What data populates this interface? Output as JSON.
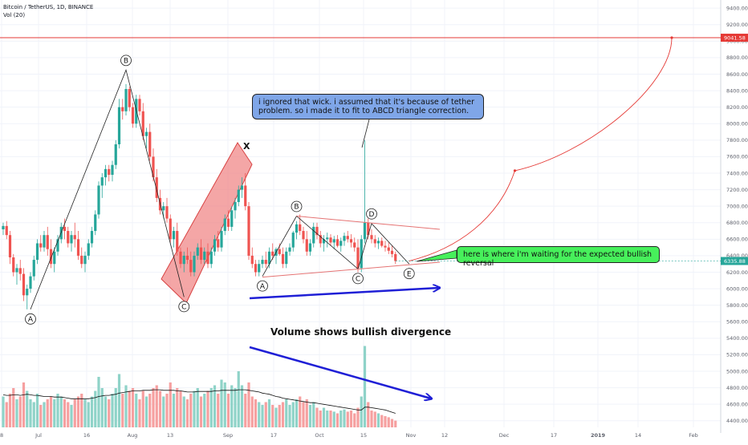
{
  "header": {
    "symbol_line": "Bitcoin / TetherUS, 1D, BINANCE",
    "volume_line": "Vol (20)"
  },
  "annotations": {
    "callout_blue": "i ignored that wick. i assumed that it's because of tether problem. so i made it to fit to ABCD triangle correction.",
    "callout_green": "here is where i'm waiting for the expected bullish reversal",
    "volume_note": "Volume shows bullish divergence",
    "x_mark": "X"
  },
  "colors": {
    "bull": "#26a69a",
    "bear": "#ef5350",
    "bull_volume": "#8fd3c8",
    "bear_volume": "#f6a0a0",
    "target_line": "#e53935",
    "arrow": "#1f1fd6",
    "channel_fill": "#f08080",
    "callout_blue": "#7fa6e8",
    "callout_green": "#47f05b"
  },
  "chart_data": {
    "type": "candlestick",
    "y_axis": {
      "ticks": [
        4400,
        4600,
        4800,
        5000,
        5200,
        5400,
        5600,
        5800,
        6000,
        6200,
        6400,
        6600,
        6800,
        7000,
        7200,
        7400,
        7600,
        7800,
        8000,
        8200,
        8400,
        8600,
        8800,
        9000,
        9200,
        9400
      ],
      "tick_labels": [
        "4400.00",
        "4600.00",
        "4800.00",
        "5000.00",
        "5200.00",
        "5400.00",
        "5600.00",
        "5800.00",
        "6000.00",
        "6200.00",
        "6400.00",
        "6600.00",
        "6800.00",
        "7000.00",
        "7200.00",
        "7400.00",
        "7600.00",
        "7800.00",
        "8000.00",
        "8200.00",
        "8400.00",
        "8600.00",
        "8800.00",
        "9000.00",
        "9200.00",
        "9400.00"
      ],
      "range": [
        4320,
        9450
      ]
    },
    "x_axis": {
      "tick_labels": [
        "8",
        "Jul",
        "16",
        "Aug",
        "13",
        "Sep",
        "17",
        "Oct",
        "15",
        "Nov",
        "12",
        "Dec",
        "17",
        "2019",
        "14",
        "Feb"
      ],
      "first_candle_day": "Jun 22 2018"
    },
    "price_marks": {
      "target": 9041.58,
      "target_label": "9041.58",
      "last": 6335.88,
      "last_label": "6335.88"
    },
    "candles": [
      [
        6720,
        6800,
        6650,
        6760
      ],
      [
        6760,
        6820,
        6600,
        6650
      ],
      [
        6650,
        6700,
        6300,
        6380
      ],
      [
        6380,
        6420,
        6150,
        6200
      ],
      [
        6200,
        6300,
        6050,
        6250
      ],
      [
        6250,
        6350,
        6100,
        6180
      ],
      [
        6180,
        6250,
        5850,
        5920
      ],
      [
        5920,
        6050,
        5750,
        6000
      ],
      [
        6000,
        6200,
        5950,
        6150
      ],
      [
        6150,
        6400,
        6100,
        6350
      ],
      [
        6350,
        6600,
        6300,
        6550
      ],
      [
        6550,
        6650,
        6450,
        6500
      ],
      [
        6500,
        6700,
        6450,
        6650
      ],
      [
        6650,
        6750,
        6400,
        6480
      ],
      [
        6480,
        6600,
        6250,
        6300
      ],
      [
        6300,
        6500,
        6200,
        6450
      ],
      [
        6450,
        6650,
        6400,
        6600
      ],
      [
        6600,
        6800,
        6550,
        6750
      ],
      [
        6750,
        6850,
        6600,
        6700
      ],
      [
        6700,
        6750,
        6500,
        6550
      ],
      [
        6550,
        6700,
        6450,
        6650
      ],
      [
        6650,
        6800,
        6500,
        6600
      ],
      [
        6600,
        6700,
        6350,
        6400
      ],
      [
        6400,
        6500,
        6250,
        6300
      ],
      [
        6300,
        6450,
        6200,
        6400
      ],
      [
        6400,
        6600,
        6350,
        6550
      ],
      [
        6550,
        6750,
        6500,
        6700
      ],
      [
        6700,
        6950,
        6650,
        6900
      ],
      [
        6900,
        7300,
        6850,
        7250
      ],
      [
        7250,
        7400,
        7100,
        7350
      ],
      [
        7350,
        7500,
        7250,
        7450
      ],
      [
        7450,
        7500,
        7300,
        7380
      ],
      [
        7380,
        7550,
        7300,
        7500
      ],
      [
        7500,
        7800,
        7450,
        7750
      ],
      [
        7750,
        8300,
        7700,
        8200
      ],
      [
        8200,
        8300,
        8050,
        8150
      ],
      [
        8150,
        8480,
        8100,
        8420
      ],
      [
        8420,
        8450,
        8150,
        8200
      ],
      [
        8200,
        8250,
        7950,
        8000
      ],
      [
        8000,
        8350,
        7950,
        8300
      ],
      [
        8300,
        8350,
        8100,
        8150
      ],
      [
        8150,
        8250,
        7800,
        7850
      ],
      [
        7850,
        7950,
        7700,
        7900
      ],
      [
        7900,
        8000,
        7550,
        7600
      ],
      [
        7600,
        7700,
        7300,
        7350
      ],
      [
        7350,
        7450,
        7050,
        7100
      ],
      [
        7100,
        7200,
        6900,
        6950
      ],
      [
        6950,
        7050,
        6850,
        7000
      ],
      [
        7000,
        7100,
        6800,
        6850
      ],
      [
        6850,
        6900,
        6550,
        6600
      ],
      [
        6600,
        6750,
        6500,
        6700
      ],
      [
        6700,
        6800,
        6400,
        6450
      ],
      [
        6450,
        6500,
        6250,
        6300
      ],
      [
        6300,
        6450,
        6200,
        6400
      ],
      [
        6400,
        6500,
        6300,
        6350
      ],
      [
        6350,
        6450,
        6150,
        6200
      ],
      [
        6200,
        6450,
        6150,
        6400
      ],
      [
        6400,
        6550,
        6350,
        6500
      ],
      [
        6500,
        6600,
        6300,
        6350
      ],
      [
        6350,
        6500,
        6300,
        6450
      ],
      [
        6450,
        6550,
        6250,
        6300
      ],
      [
        6300,
        6500,
        6250,
        6450
      ],
      [
        6450,
        6650,
        6400,
        6600
      ],
      [
        6600,
        6700,
        6450,
        6500
      ],
      [
        6500,
        6750,
        6450,
        6700
      ],
      [
        6700,
        6900,
        6650,
        6850
      ],
      [
        6850,
        6950,
        6700,
        6750
      ],
      [
        6750,
        7000,
        6700,
        6950
      ],
      [
        6950,
        7100,
        6850,
        7050
      ],
      [
        7050,
        7250,
        7000,
        7200
      ],
      [
        7200,
        7350,
        7100,
        7250
      ],
      [
        7250,
        7400,
        6950,
        7000
      ],
      [
        7000,
        7050,
        6350,
        6400
      ],
      [
        6400,
        6500,
        6250,
        6300
      ],
      [
        6300,
        6350,
        6150,
        6200
      ],
      [
        6200,
        6350,
        6150,
        6300
      ],
      [
        6300,
        6400,
        6250,
        6350
      ],
      [
        6350,
        6450,
        6250,
        6300
      ],
      [
        6300,
        6500,
        6250,
        6450
      ],
      [
        6450,
        6550,
        6350,
        6400
      ],
      [
        6400,
        6500,
        6300,
        6480
      ],
      [
        6480,
        6550,
        6400,
        6420
      ],
      [
        6420,
        6500,
        6250,
        6300
      ],
      [
        6300,
        6500,
        6250,
        6450
      ],
      [
        6450,
        6550,
        6400,
        6500
      ],
      [
        6500,
        6700,
        6450,
        6680
      ],
      [
        6680,
        6820,
        6600,
        6780
      ],
      [
        6780,
        6900,
        6650,
        6700
      ],
      [
        6700,
        6750,
        6550,
        6600
      ],
      [
        6600,
        6700,
        6400,
        6450
      ],
      [
        6450,
        6600,
        6400,
        6550
      ],
      [
        6550,
        6800,
        6500,
        6750
      ],
      [
        6750,
        6800,
        6600,
        6650
      ],
      [
        6650,
        6700,
        6500,
        6550
      ],
      [
        6550,
        6650,
        6450,
        6600
      ],
      [
        6600,
        6680,
        6500,
        6620
      ],
      [
        6620,
        6660,
        6520,
        6560
      ],
      [
        6560,
        6640,
        6480,
        6600
      ],
      [
        6600,
        6650,
        6500,
        6520
      ],
      [
        6520,
        6620,
        6450,
        6580
      ],
      [
        6580,
        6680,
        6520,
        6640
      ],
      [
        6640,
        6700,
        6560,
        6600
      ],
      [
        6600,
        6660,
        6500,
        6560
      ],
      [
        6560,
        6620,
        6450,
        6500
      ],
      [
        6500,
        6600,
        6200,
        6250
      ],
      [
        6250,
        6650,
        6200,
        6600
      ],
      [
        6600,
        7800,
        6550,
        6800
      ],
      [
        6800,
        6850,
        6600,
        6650
      ],
      [
        6650,
        6720,
        6550,
        6600
      ],
      [
        6600,
        6650,
        6500,
        6550
      ],
      [
        6550,
        6620,
        6480,
        6580
      ],
      [
        6580,
        6620,
        6500,
        6520
      ],
      [
        6520,
        6580,
        6450,
        6500
      ],
      [
        6500,
        6560,
        6420,
        6460
      ],
      [
        6460,
        6520,
        6380,
        6420
      ],
      [
        6420,
        6450,
        6300,
        6336
      ]
    ],
    "volume": [
      0.55,
      0.45,
      0.6,
      0.7,
      0.5,
      0.55,
      0.8,
      0.65,
      0.5,
      0.45,
      0.6,
      0.4,
      0.45,
      0.5,
      0.55,
      0.5,
      0.6,
      0.55,
      0.5,
      0.45,
      0.4,
      0.5,
      0.55,
      0.6,
      0.5,
      0.45,
      0.55,
      0.65,
      0.9,
      0.7,
      0.55,
      0.5,
      0.6,
      0.7,
      0.95,
      0.6,
      0.75,
      0.65,
      0.7,
      0.6,
      0.5,
      0.65,
      0.55,
      0.6,
      0.7,
      0.75,
      0.65,
      0.55,
      0.6,
      0.8,
      0.6,
      0.7,
      0.65,
      0.55,
      0.5,
      0.6,
      0.65,
      0.7,
      0.55,
      0.6,
      0.65,
      0.7,
      0.75,
      0.6,
      0.85,
      0.8,
      0.6,
      0.75,
      0.7,
      1.0,
      0.75,
      0.6,
      0.8,
      0.55,
      0.5,
      0.45,
      0.4,
      0.45,
      0.5,
      0.4,
      0.35,
      0.4,
      0.45,
      0.5,
      0.4,
      0.45,
      0.5,
      0.55,
      0.45,
      0.5,
      0.4,
      0.45,
      0.35,
      0.3,
      0.35,
      0.3,
      0.3,
      0.28,
      0.25,
      0.3,
      0.32,
      0.28,
      0.3,
      0.25,
      0.35,
      0.55,
      1.45,
      0.45,
      0.3,
      0.28,
      0.25,
      0.22,
      0.2,
      0.18,
      0.15,
      0.12
    ],
    "volume_ma": [
      0.58,
      0.57,
      0.57,
      0.58,
      0.58,
      0.57,
      0.58,
      0.59,
      0.58,
      0.57,
      0.57,
      0.56,
      0.55,
      0.55,
      0.55,
      0.54,
      0.54,
      0.54,
      0.53,
      0.52,
      0.51,
      0.51,
      0.51,
      0.51,
      0.51,
      0.51,
      0.52,
      0.53,
      0.55,
      0.56,
      0.57,
      0.57,
      0.58,
      0.59,
      0.61,
      0.62,
      0.63,
      0.64,
      0.65,
      0.65,
      0.65,
      0.66,
      0.66,
      0.66,
      0.67,
      0.67,
      0.67,
      0.66,
      0.66,
      0.66,
      0.66,
      0.65,
      0.65,
      0.64,
      0.63,
      0.63,
      0.63,
      0.64,
      0.64,
      0.64,
      0.64,
      0.64,
      0.65,
      0.65,
      0.66,
      0.66,
      0.66,
      0.66,
      0.66,
      0.67,
      0.67,
      0.67,
      0.66,
      0.65,
      0.64,
      0.63,
      0.61,
      0.6,
      0.59,
      0.57,
      0.55,
      0.54,
      0.52,
      0.51,
      0.5,
      0.49,
      0.48,
      0.47,
      0.46,
      0.45,
      0.44,
      0.44,
      0.43,
      0.42,
      0.41,
      0.4,
      0.39,
      0.38,
      0.37,
      0.36,
      0.35,
      0.34,
      0.33,
      0.32,
      0.31,
      0.31,
      0.36,
      0.36,
      0.35,
      0.34,
      0.33,
      0.32,
      0.31,
      0.29,
      0.27,
      0.25
    ],
    "waves": {
      "macro": [
        {
          "label": "A",
          "day": 8,
          "price": 5750
        },
        {
          "label": "B",
          "day": 36,
          "price": 8650
        },
        {
          "label": "C",
          "day": 53,
          "price": 5900
        }
      ],
      "triangle": [
        {
          "label": "A",
          "day": 76,
          "price": 6150
        },
        {
          "label": "B",
          "day": 86,
          "price": 6880
        },
        {
          "label": "C",
          "day": 104,
          "price": 6240
        },
        {
          "label": "D",
          "day": 108,
          "price": 6790
        },
        {
          "label": "E",
          "day": 119,
          "price": 6300
        }
      ]
    },
    "projection": [
      {
        "day": 119,
        "price": 6336
      },
      {
        "day": 150,
        "price": 7430
      },
      {
        "day": 196,
        "price": 9041.58
      }
    ]
  }
}
